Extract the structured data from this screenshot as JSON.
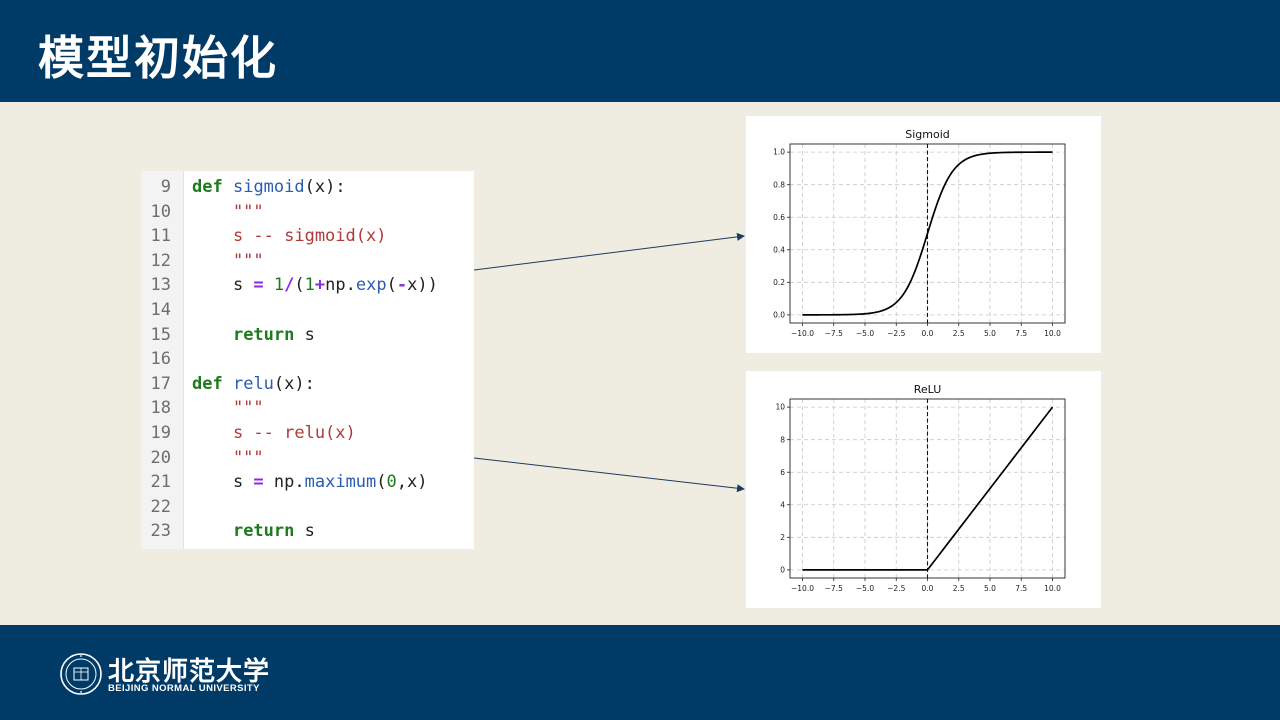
{
  "slide": {
    "title": "模型初始化"
  },
  "code": {
    "lines": [
      {
        "n": "9",
        "parts": [
          {
            "t": "def",
            "c": "kw"
          },
          {
            "t": " ",
            "c": ""
          },
          {
            "t": "sigmoid",
            "c": "fn"
          },
          {
            "t": "(x):",
            "c": ""
          }
        ]
      },
      {
        "n": "10",
        "parts": [
          {
            "t": "    \"\"\"",
            "c": "str"
          }
        ]
      },
      {
        "n": "11",
        "parts": [
          {
            "t": "    s -- sigmoid(x)",
            "c": "str"
          }
        ]
      },
      {
        "n": "12",
        "parts": [
          {
            "t": "    \"\"\"",
            "c": "str"
          }
        ]
      },
      {
        "n": "13",
        "parts": [
          {
            "t": "    s ",
            "c": ""
          },
          {
            "t": "=",
            "c": "op"
          },
          {
            "t": " ",
            "c": ""
          },
          {
            "t": "1",
            "c": "num"
          },
          {
            "t": "/",
            "c": "op"
          },
          {
            "t": "(",
            "c": ""
          },
          {
            "t": "1",
            "c": "num"
          },
          {
            "t": "+",
            "c": "op"
          },
          {
            "t": "np.",
            "c": ""
          },
          {
            "t": "exp",
            "c": "fn"
          },
          {
            "t": "(",
            "c": ""
          },
          {
            "t": "-",
            "c": "op"
          },
          {
            "t": "x))",
            "c": ""
          }
        ]
      },
      {
        "n": "14",
        "parts": []
      },
      {
        "n": "15",
        "parts": [
          {
            "t": "    ",
            "c": ""
          },
          {
            "t": "return",
            "c": "kw"
          },
          {
            "t": " s",
            "c": ""
          }
        ]
      },
      {
        "n": "16",
        "parts": []
      },
      {
        "n": "17",
        "parts": [
          {
            "t": "def",
            "c": "kw"
          },
          {
            "t": " ",
            "c": ""
          },
          {
            "t": "relu",
            "c": "fn"
          },
          {
            "t": "(x):",
            "c": ""
          }
        ]
      },
      {
        "n": "18",
        "parts": [
          {
            "t": "    \"\"\"",
            "c": "str"
          }
        ]
      },
      {
        "n": "19",
        "parts": [
          {
            "t": "    s -- relu(x)",
            "c": "str"
          }
        ]
      },
      {
        "n": "20",
        "parts": [
          {
            "t": "    \"\"\"",
            "c": "str"
          }
        ]
      },
      {
        "n": "21",
        "parts": [
          {
            "t": "    s ",
            "c": ""
          },
          {
            "t": "=",
            "c": "op"
          },
          {
            "t": " np.",
            "c": ""
          },
          {
            "t": "maximum",
            "c": "fn"
          },
          {
            "t": "(",
            "c": ""
          },
          {
            "t": "0",
            "c": "num"
          },
          {
            "t": ",x)",
            "c": ""
          }
        ]
      },
      {
        "n": "22",
        "parts": []
      },
      {
        "n": "23",
        "parts": [
          {
            "t": "    ",
            "c": ""
          },
          {
            "t": "return",
            "c": "kw"
          },
          {
            "t": " s",
            "c": ""
          }
        ]
      }
    ]
  },
  "chart_data": [
    {
      "type": "line",
      "title": "Sigmoid",
      "xlim": [
        -11,
        11
      ],
      "ylim": [
        -0.05,
        1.05
      ],
      "xticks": [
        -10.0,
        -7.5,
        -5.0,
        -2.5,
        0.0,
        2.5,
        5.0,
        7.5,
        10.0
      ],
      "xtick_labels": [
        "−10.0",
        "−7.5",
        "−5.0",
        "−2.5",
        "0.0",
        "2.5",
        "5.0",
        "7.5",
        "10.0"
      ],
      "yticks": [
        0.0,
        0.2,
        0.4,
        0.6,
        0.8,
        1.0
      ],
      "ytick_labels": [
        "0.0",
        "0.2",
        "0.4",
        "0.6",
        "0.8",
        "1.0"
      ],
      "grid": true,
      "function": "sigmoid",
      "x": [
        -10,
        -8,
        -6,
        -5,
        -4,
        -3,
        -2,
        -1.5,
        -1,
        -0.5,
        0,
        0.5,
        1,
        1.5,
        2,
        3,
        4,
        5,
        6,
        8,
        10
      ],
      "y": [
        4.54e-05,
        0.000335,
        0.00247,
        0.00669,
        0.018,
        0.0474,
        0.119,
        0.182,
        0.269,
        0.378,
        0.5,
        0.622,
        0.731,
        0.818,
        0.881,
        0.953,
        0.982,
        0.993,
        0.9975,
        0.99966,
        0.99995
      ],
      "vline_x": 0
    },
    {
      "type": "line",
      "title": "ReLU",
      "xlim": [
        -11,
        11
      ],
      "ylim": [
        -0.5,
        10.5
      ],
      "xticks": [
        -10.0,
        -7.5,
        -5.0,
        -2.5,
        0.0,
        2.5,
        5.0,
        7.5,
        10.0
      ],
      "xtick_labels": [
        "−10.0",
        "−7.5",
        "−5.0",
        "−2.5",
        "0.0",
        "2.5",
        "5.0",
        "7.5",
        "10.0"
      ],
      "yticks": [
        0,
        2,
        4,
        6,
        8,
        10
      ],
      "ytick_labels": [
        "0",
        "2",
        "4",
        "6",
        "8",
        "10"
      ],
      "grid": true,
      "function": "relu",
      "x": [
        -10,
        0,
        10
      ],
      "y": [
        0,
        0,
        10
      ],
      "vline_x": 0
    }
  ],
  "footer": {
    "university_cn": "北京师范大学",
    "university_en": "BEIJING NORMAL UNIVERSITY"
  },
  "colors": {
    "navy": "#003a66",
    "background": "#efece2",
    "keyword": "#1e7a1e",
    "function": "#2a5db0",
    "string": "#b03a3a",
    "operator": "#8a2be2"
  }
}
